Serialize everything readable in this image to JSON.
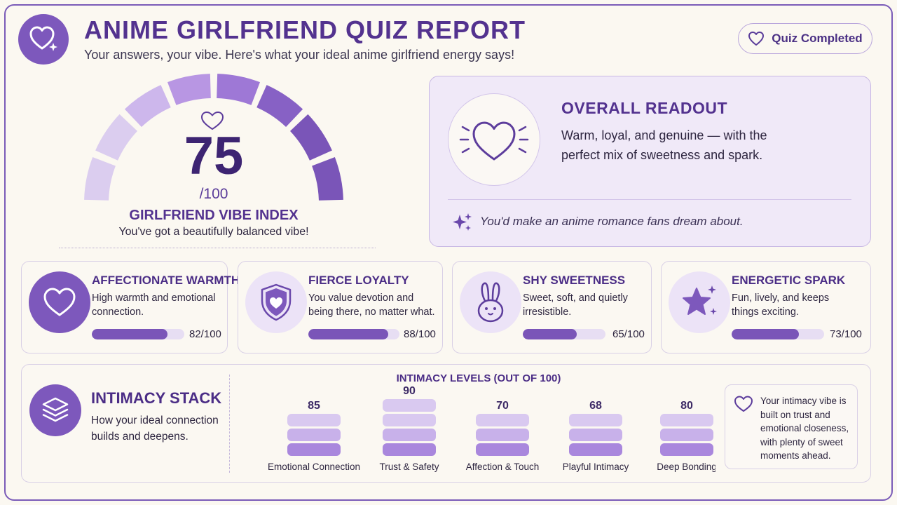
{
  "header": {
    "title": "ANIME GIRLFRIEND QUIZ REPORT",
    "subtitle": "Your answers, your vibe. Here's what your ideal anime girlfriend energy says!",
    "badge_label": "Quiz Completed",
    "logo_icon": "heart-sparkle-icon"
  },
  "gauge": {
    "score": "75",
    "denominator": "/100",
    "value": 75,
    "max": 100,
    "label": "GIRLFRIEND VIBE INDEX",
    "sublabel": "You've got a beautifully balanced vibe!"
  },
  "readout": {
    "title": "OVERALL READOUT",
    "text": "Warm, loyal, and genuine — with the perfect mix of sweetness and spark.",
    "quote": "You'd make an anime romance fans dream about."
  },
  "traits": [
    {
      "title": "AFFECTIONATE WARMTH",
      "text": "High warmth and emotional connection.",
      "value": 82,
      "value_label": "82/100",
      "icon": "heart-icon"
    },
    {
      "title": "FIERCE LOYALTY",
      "text": "You value devotion and being there, no matter what.",
      "value": 88,
      "value_label": "88/100",
      "icon": "shield-heart-icon"
    },
    {
      "title": "SHY SWEETNESS",
      "text": "Sweet, soft, and quietly irresistible.",
      "value": 65,
      "value_label": "65/100",
      "icon": "bunny-icon"
    },
    {
      "title": "ENERGETIC SPARK",
      "text": "Fun, lively, and keeps things exciting.",
      "value": 73,
      "value_label": "73/100",
      "icon": "star-sparkle-icon"
    }
  ],
  "stack": {
    "title": "INTIMACY STACK",
    "subtitle": "How your ideal connection builds and deepens.",
    "note": "Your intimacy vibe is built on trust and emotional closeness, with plenty of sweet moments ahead.",
    "icon": "layers-icon"
  },
  "chart_data": {
    "type": "bar",
    "title": "INTIMACY LEVELS (OUT OF 100)",
    "categories": [
      "Emotional Connection",
      "Trust & Safety",
      "Affection & Touch",
      "Playful Intimacy",
      "Deep Bonding"
    ],
    "values": [
      85,
      90,
      70,
      68,
      80
    ],
    "ylim": [
      0,
      100
    ],
    "colors": [
      "#d9c9f0",
      "#c8b1ea",
      "#a987dd"
    ]
  },
  "colors": {
    "accent": "#7d58bc",
    "title": "#53328f",
    "background": "#fbf8f1",
    "panel": "#f0e9f8"
  }
}
